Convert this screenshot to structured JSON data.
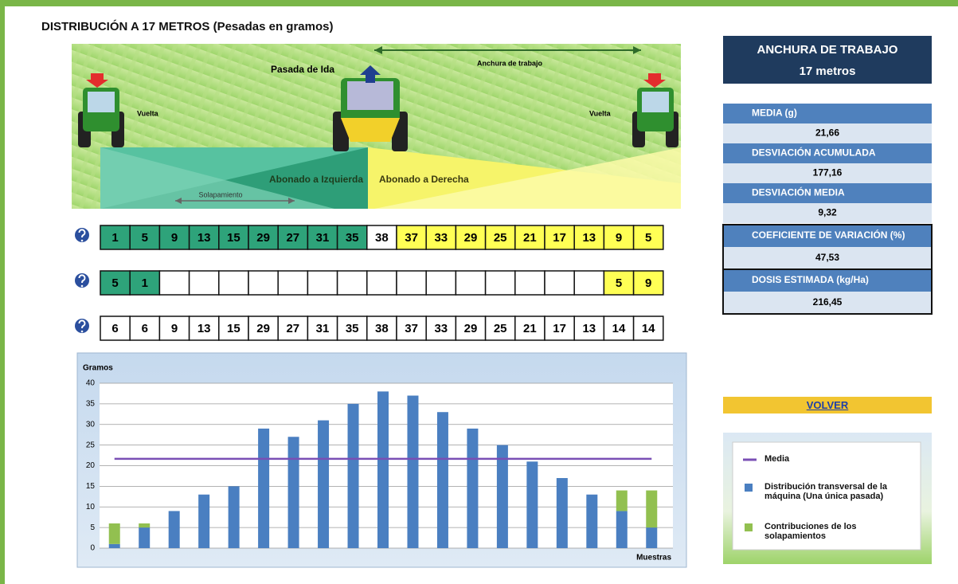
{
  "header": {
    "title": "DISTRIBUCIÓN A 17 METROS (Pesadas en gramos)"
  },
  "illustration": {
    "pass": "Pasada de Ida",
    "width": "Anchura de trabajo",
    "return_left": "Vuelta",
    "return_right": "Vuelta",
    "left": "Abonado a Izquierda",
    "right": "Abonado a Derecha",
    "overlap": "Solapamiento"
  },
  "tables": [
    {
      "cells": [
        1,
        5,
        9,
        13,
        15,
        29,
        27,
        31,
        35,
        38,
        37,
        33,
        29,
        25,
        21,
        17,
        13,
        9,
        5
      ],
      "colors": [
        "#2ea37a",
        "#2ea37a",
        "#2ea37a",
        "#2ea37a",
        "#2ea37a",
        "#2ea37a",
        "#2ea37a",
        "#2ea37a",
        "#2ea37a",
        "#ffffff",
        "#ffff55",
        "#ffff55",
        "#ffff55",
        "#ffff55",
        "#ffff55",
        "#ffff55",
        "#ffff55",
        "#ffff55",
        "#ffff55"
      ]
    },
    {
      "cells": [
        5,
        1,
        null,
        null,
        null,
        null,
        null,
        null,
        null,
        null,
        null,
        null,
        null,
        null,
        null,
        null,
        null,
        5,
        9
      ],
      "colors": [
        "#2ea37a",
        "#2ea37a",
        "#ffffff",
        "#ffffff",
        "#ffffff",
        "#ffffff",
        "#ffffff",
        "#ffffff",
        "#ffffff",
        "#ffffff",
        "#ffffff",
        "#ffffff",
        "#ffffff",
        "#ffffff",
        "#ffffff",
        "#ffffff",
        "#ffffff",
        "#ffff55",
        "#ffff55"
      ]
    },
    {
      "cells": [
        6,
        6,
        9,
        13,
        15,
        29,
        27,
        31,
        35,
        38,
        37,
        33,
        29,
        25,
        21,
        17,
        13,
        14,
        14
      ],
      "colors": [
        "#ffffff",
        "#ffffff",
        "#ffffff",
        "#ffffff",
        "#ffffff",
        "#ffffff",
        "#ffffff",
        "#ffffff",
        "#ffffff",
        "#ffffff",
        "#ffffff",
        "#ffffff",
        "#ffffff",
        "#ffffff",
        "#ffffff",
        "#ffffff",
        "#ffffff",
        "#ffffff",
        "#ffffff"
      ]
    }
  ],
  "summary": {
    "width": {
      "title": "ANCHURA DE TRABAJO",
      "value": "17 metros"
    },
    "stats": [
      {
        "label": "MEDIA (g)",
        "value": "21,66"
      },
      {
        "label": "DESVIACIÓN ACUMULADA",
        "value": "177,16"
      },
      {
        "label": "DESVIACIÓN MEDIA",
        "value": "9,32"
      },
      {
        "label": "COEFICIENTE DE VARIACIÓN (%)",
        "value": "47,53"
      },
      {
        "label": "DOSIS ESTIMADA (kg/Ha)",
        "value": "216,45"
      }
    ]
  },
  "button": "VOLVER",
  "chart_data": {
    "type": "stacked_bar",
    "ylabel": "Gramos",
    "xlabel": "Muestras",
    "ylim": [
      0,
      40
    ],
    "yticks": [
      0,
      5,
      10,
      15,
      20,
      25,
      30,
      35,
      40
    ],
    "grid": true,
    "series": [
      {
        "name": "Distribución transversal de la máquina (Una única pasada)",
        "color": "#4a7fc1",
        "values": [
          1,
          5,
          9,
          13,
          15,
          29,
          27,
          31,
          35,
          38,
          37,
          33,
          29,
          25,
          21,
          17,
          13,
          9,
          5
        ]
      },
      {
        "name": "Contribuciones de los solapamientos",
        "color": "#92c050",
        "values": [
          5,
          1,
          null,
          null,
          null,
          null,
          null,
          null,
          null,
          null,
          null,
          null,
          null,
          null,
          null,
          null,
          null,
          5,
          9
        ]
      }
    ],
    "mean_line": {
      "name": "Media",
      "color": "#7a4fb5",
      "value": 21.66
    }
  }
}
